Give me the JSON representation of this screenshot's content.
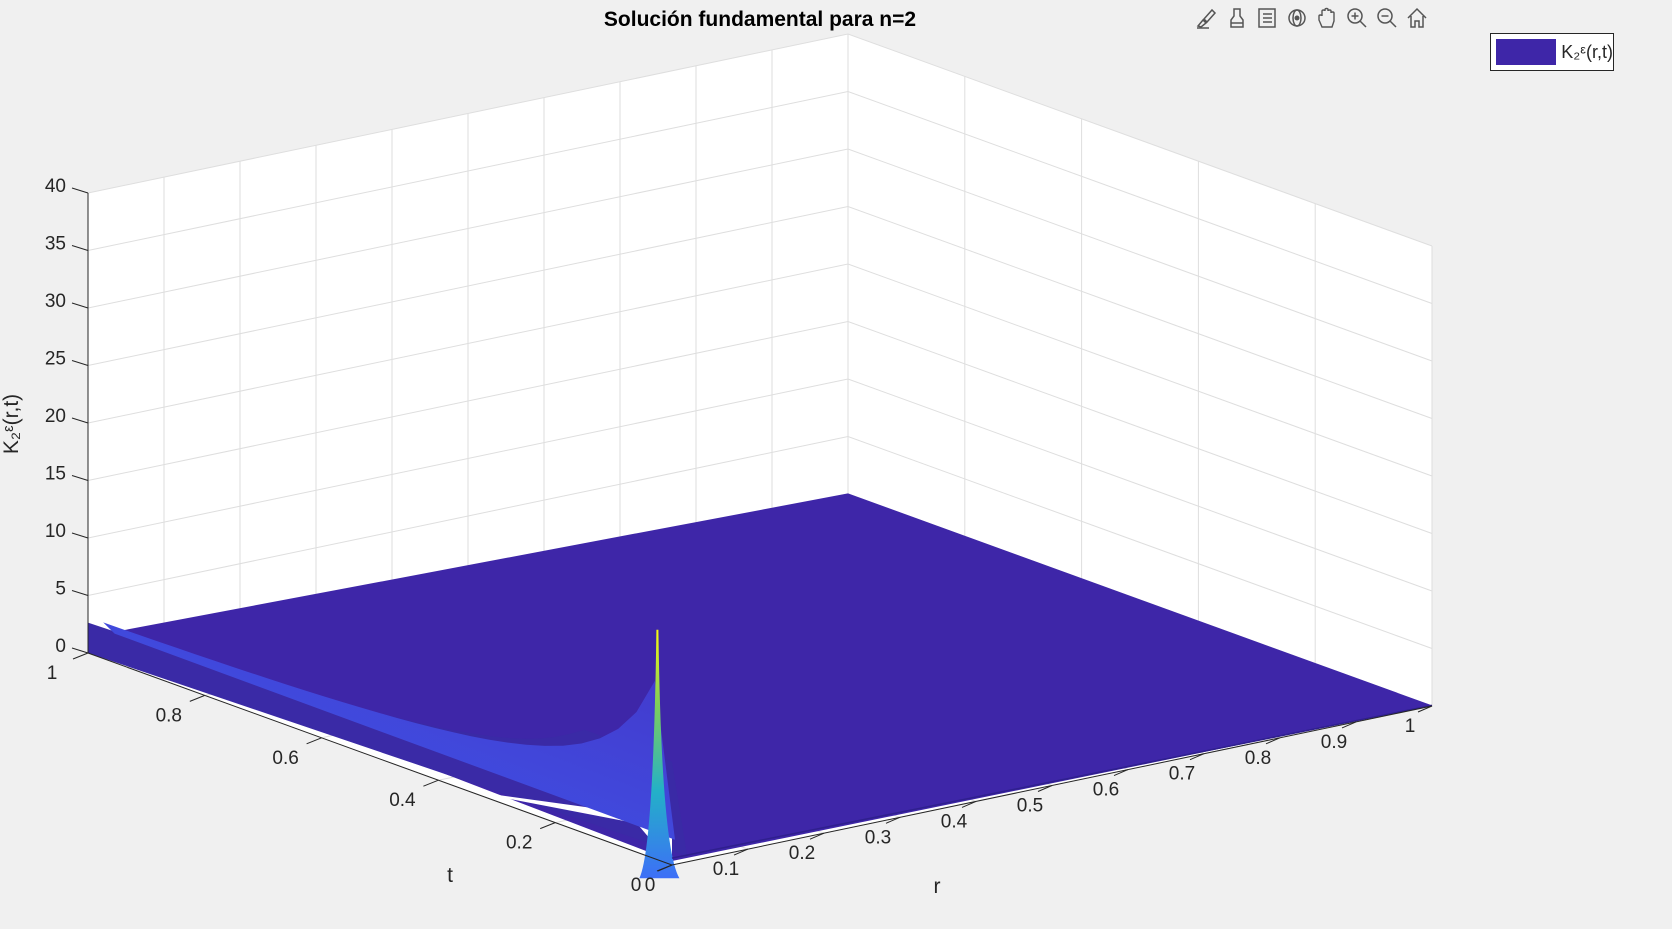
{
  "chart_data": {
    "type": "surface",
    "title": "Solución fundamental para n=2",
    "xlabel": "r",
    "ylabel": "t",
    "zlabel": "K₂ᵋ(r,t)",
    "xlim": [
      0,
      1
    ],
    "ylim": [
      0,
      1
    ],
    "zlim": [
      0,
      40
    ],
    "xticks": [
      "0",
      "0.1",
      "0.2",
      "0.3",
      "0.4",
      "0.5",
      "0.6",
      "0.7",
      "0.8",
      "0.9",
      "1"
    ],
    "yticks": [
      "0",
      "0.2",
      "0.4",
      "0.6",
      "0.8",
      "1"
    ],
    "zticks": [
      "0",
      "5",
      "10",
      "15",
      "20",
      "25",
      "30",
      "35",
      "40"
    ],
    "grid": true,
    "legend_position": "top-right",
    "series": [
      {
        "name": "K₂ᵋ(r,t)",
        "color": "#3e26a8"
      }
    ],
    "surface_samples": [
      {
        "r": 0.0,
        "t": 0.0,
        "z": 0.0
      },
      {
        "r": 0.0,
        "t": 0.02,
        "z": 20.0
      },
      {
        "r": 0.0,
        "t": 0.05,
        "z": 8.0
      },
      {
        "r": 0.0,
        "t": 0.2,
        "z": 3.0
      },
      {
        "r": 0.0,
        "t": 0.6,
        "z": 1.6
      },
      {
        "r": 0.0,
        "t": 1.0,
        "z": 1.2
      },
      {
        "r": 0.2,
        "t": 0.1,
        "z": 0.3
      },
      {
        "r": 0.5,
        "t": 0.5,
        "z": 0.1
      },
      {
        "r": 1.0,
        "t": 1.0,
        "z": 0.0
      }
    ],
    "colormap": "parula"
  },
  "toolbar": {
    "icons": [
      "brush-data-icon",
      "link-brush-icon",
      "data-tips-icon",
      "rotate-3d-icon",
      "pan-icon",
      "zoom-in-icon",
      "zoom-out-icon",
      "restore-view-icon"
    ]
  },
  "colors": {
    "background": "#f0f0f0",
    "surface_low": "#3e26a8",
    "surface_mid": "#3d8bfd",
    "surface_peak": "#f9fb0e"
  }
}
